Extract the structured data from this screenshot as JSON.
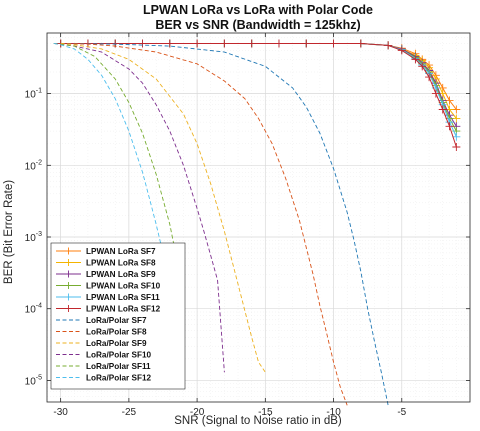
{
  "chart_data": {
    "type": "line",
    "title": "LPWAN LoRa vs LoRa with Polar Code",
    "subtitle": "BER vs SNR (Bandwidth = 125khz)",
    "xlabel": "SNR (Signal to Noise ratio in dB)",
    "ylabel": "BER (Bit Error Rate)",
    "xlim": [
      -31,
      0
    ],
    "ylim": [
      5e-06,
      0.7
    ],
    "yscale": "log",
    "grid": true,
    "legend_position": "bottom-left",
    "x_ticks": [
      -30,
      -25,
      -20,
      -15,
      -10,
      -5
    ],
    "y_ticks": [
      {
        "value": 1e-05,
        "base": "10",
        "exp": "-5"
      },
      {
        "value": 0.0001,
        "base": "10",
        "exp": "-4"
      },
      {
        "value": 0.001,
        "base": "10",
        "exp": "-3"
      },
      {
        "value": 0.01,
        "base": "10",
        "exp": "-2"
      },
      {
        "value": 0.1,
        "base": "10",
        "exp": "-1"
      }
    ],
    "series": [
      {
        "name": "LPWAN LoRa SF7",
        "color": "#ff7f0e",
        "style": "solid",
        "marker": "+",
        "x": [
          -30,
          -28,
          -26,
          -24,
          -22,
          -20,
          -18,
          -16,
          -14,
          -12,
          -10,
          -8,
          -6,
          -5,
          -4,
          -3.5,
          -3,
          -2.5,
          -2,
          -1.5,
          -1
        ],
        "y": [
          0.5,
          0.5,
          0.5,
          0.5,
          0.5,
          0.5,
          0.5,
          0.5,
          0.5,
          0.5,
          0.5,
          0.5,
          0.47,
          0.43,
          0.36,
          0.3,
          0.25,
          0.18,
          0.12,
          0.08,
          0.06
        ]
      },
      {
        "name": "LPWAN LoRa SF8",
        "color": "#f4b400",
        "style": "solid",
        "marker": "+",
        "x": [
          -30,
          -28,
          -26,
          -24,
          -22,
          -20,
          -18,
          -16,
          -14,
          -12,
          -10,
          -8,
          -6,
          -5,
          -4,
          -3.5,
          -3,
          -2.5,
          -2,
          -1.5,
          -1
        ],
        "y": [
          0.5,
          0.5,
          0.5,
          0.5,
          0.5,
          0.5,
          0.5,
          0.5,
          0.5,
          0.5,
          0.5,
          0.5,
          0.47,
          0.42,
          0.34,
          0.29,
          0.23,
          0.16,
          0.1,
          0.06,
          0.045
        ]
      },
      {
        "name": "LPWAN LoRa SF9",
        "color": "#7e2f8e",
        "style": "solid",
        "marker": "+",
        "x": [
          -30,
          -28,
          -26,
          -24,
          -22,
          -20,
          -18,
          -16,
          -14,
          -12,
          -10,
          -8,
          -6,
          -5,
          -4,
          -3.5,
          -3,
          -2.5,
          -2,
          -1.5,
          -1
        ],
        "y": [
          0.5,
          0.5,
          0.5,
          0.5,
          0.5,
          0.5,
          0.5,
          0.5,
          0.5,
          0.5,
          0.5,
          0.5,
          0.47,
          0.42,
          0.33,
          0.27,
          0.21,
          0.14,
          0.08,
          0.05,
          0.035
        ]
      },
      {
        "name": "LPWAN LoRa SF10",
        "color": "#77ac30",
        "style": "solid",
        "marker": "+",
        "x": [
          -30,
          -28,
          -26,
          -24,
          -22,
          -20,
          -18,
          -16,
          -14,
          -12,
          -10,
          -8,
          -6,
          -5,
          -4,
          -3.5,
          -3,
          -2.5,
          -2,
          -1.5,
          -1
        ],
        "y": [
          0.5,
          0.5,
          0.5,
          0.5,
          0.5,
          0.5,
          0.5,
          0.5,
          0.5,
          0.5,
          0.5,
          0.5,
          0.47,
          0.41,
          0.32,
          0.26,
          0.2,
          0.13,
          0.075,
          0.045,
          0.03
        ]
      },
      {
        "name": "LPWAN LoRa SF11",
        "color": "#4dbeee",
        "style": "solid",
        "marker": "+",
        "x": [
          -30,
          -28,
          -26,
          -24,
          -22,
          -20,
          -18,
          -16,
          -14,
          -12,
          -10,
          -8,
          -6,
          -5,
          -4,
          -3.5,
          -3,
          -2.5,
          -2,
          -1.5,
          -1
        ],
        "y": [
          0.5,
          0.5,
          0.5,
          0.5,
          0.5,
          0.5,
          0.5,
          0.5,
          0.5,
          0.5,
          0.5,
          0.5,
          0.47,
          0.41,
          0.31,
          0.25,
          0.19,
          0.12,
          0.07,
          0.04,
          0.025
        ]
      },
      {
        "name": "LPWAN LoRa SF12",
        "color": "#c1272d",
        "style": "solid",
        "marker": "+",
        "x": [
          -30,
          -28,
          -26,
          -24,
          -22,
          -20,
          -18,
          -16,
          -14,
          -12,
          -10,
          -8,
          -6,
          -5,
          -4,
          -3.5,
          -3,
          -2.5,
          -2,
          -1.5,
          -1
        ],
        "y": [
          0.5,
          0.5,
          0.5,
          0.5,
          0.5,
          0.5,
          0.5,
          0.5,
          0.5,
          0.5,
          0.5,
          0.5,
          0.47,
          0.4,
          0.3,
          0.24,
          0.17,
          0.1,
          0.06,
          0.035,
          0.018
        ]
      },
      {
        "name": "LoRa/Polar SF7",
        "color": "#1f77b4",
        "style": "dashed",
        "marker": "",
        "x": [
          -30,
          -26,
          -22,
          -18,
          -15,
          -13,
          -12,
          -11,
          -10,
          -9,
          -8.5,
          -8,
          -7.5,
          -7,
          -6.5,
          -6
        ],
        "y": [
          0.5,
          0.49,
          0.46,
          0.38,
          0.24,
          0.12,
          0.065,
          0.028,
          0.009,
          0.0022,
          0.0009,
          0.00033,
          0.0001,
          3.5e-05,
          1.3e-05,
          4.5e-06
        ]
      },
      {
        "name": "LoRa/Polar SF8",
        "color": "#d95319",
        "style": "dashed",
        "marker": "",
        "x": [
          -30,
          -28,
          -26,
          -23,
          -20,
          -18,
          -16.5,
          -15.5,
          -14.5,
          -13.5,
          -12.5,
          -11.5,
          -11,
          -10.5,
          -10,
          -9.5,
          -9
        ],
        "y": [
          0.5,
          0.49,
          0.46,
          0.38,
          0.26,
          0.15,
          0.085,
          0.045,
          0.02,
          0.0065,
          0.0017,
          0.0003,
          0.00011,
          4.5e-05,
          1.8e-05,
          8e-06,
          4.5e-06
        ]
      },
      {
        "name": "LoRa/Polar SF9",
        "color": "#edb120",
        "style": "dashed",
        "marker": "",
        "x": [
          -30,
          -29,
          -27,
          -25,
          -23,
          -21,
          -20,
          -19,
          -18,
          -17,
          -16,
          -15.5,
          -15
        ],
        "y": [
          0.5,
          0.48,
          0.42,
          0.3,
          0.16,
          0.052,
          0.02,
          0.0055,
          0.0012,
          0.00022,
          4e-05,
          1.8e-05,
          1.3e-05
        ]
      },
      {
        "name": "LoRa/Polar SF10",
        "color": "#7e2f8e",
        "style": "dashed",
        "marker": "",
        "x": [
          -30.5,
          -29,
          -27,
          -25,
          -24,
          -23,
          -22,
          -21,
          -20,
          -19.5,
          -19,
          -18.5,
          -18
        ],
        "y": [
          0.5,
          0.46,
          0.38,
          0.22,
          0.14,
          0.07,
          0.03,
          0.01,
          0.0025,
          0.0012,
          0.00055,
          0.00025,
          1.3e-05
        ]
      },
      {
        "name": "LoRa/Polar SF11",
        "color": "#77ac30",
        "style": "dashed",
        "marker": "",
        "x": [
          -30.5,
          -29,
          -27.5,
          -26,
          -25,
          -24,
          -23,
          -22,
          -21.5,
          -21
        ],
        "y": [
          0.5,
          0.46,
          0.33,
          0.16,
          0.075,
          0.028,
          0.0075,
          0.0015,
          0.0005,
          6e-05
        ]
      },
      {
        "name": "LoRa/Polar SF12",
        "color": "#4dbeee",
        "style": "dashed",
        "marker": "",
        "x": [
          -30.5,
          -30,
          -29,
          -28,
          -27,
          -26,
          -25,
          -24,
          -23.5,
          -23,
          -22.5,
          -22,
          -21.5,
          -21
        ],
        "y": [
          0.5,
          0.48,
          0.42,
          0.3,
          0.18,
          0.085,
          0.03,
          0.008,
          0.0035,
          0.0015,
          0.0006,
          0.00025,
          0.00011,
          5e-05
        ]
      }
    ]
  }
}
